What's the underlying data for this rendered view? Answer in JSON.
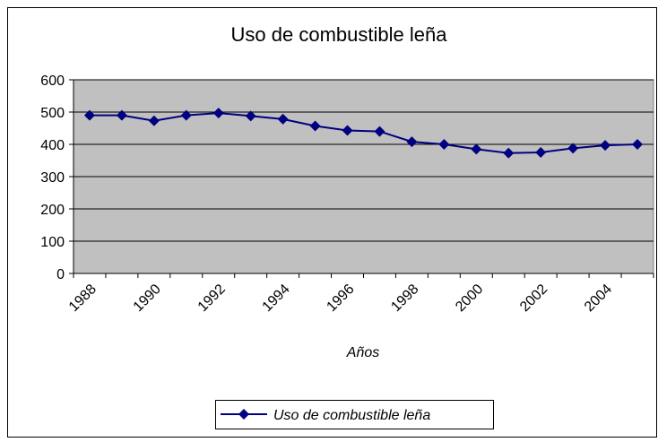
{
  "chart_data": {
    "type": "line",
    "title": "Uso de combustible leña",
    "x_label": "Años",
    "categories": [
      "1988",
      null,
      "1990",
      null,
      "1992",
      null,
      "1994",
      null,
      "1996",
      null,
      "1998",
      null,
      "2000",
      null,
      "2002",
      null,
      "2004",
      null
    ],
    "series": [
      {
        "name": "Uso de combustible leña",
        "color": "#000080",
        "values": [
          490,
          490,
          473,
          490,
          497,
          488,
          478,
          457,
          443,
          440,
          408,
          400,
          385,
          373,
          375,
          388,
          397,
          400
        ]
      }
    ],
    "ylim": [
      0,
      600
    ],
    "yticks": [
      0,
      100,
      200,
      300,
      400,
      500,
      600
    ],
    "grid": true,
    "plot_color": "#c0c0c0"
  }
}
